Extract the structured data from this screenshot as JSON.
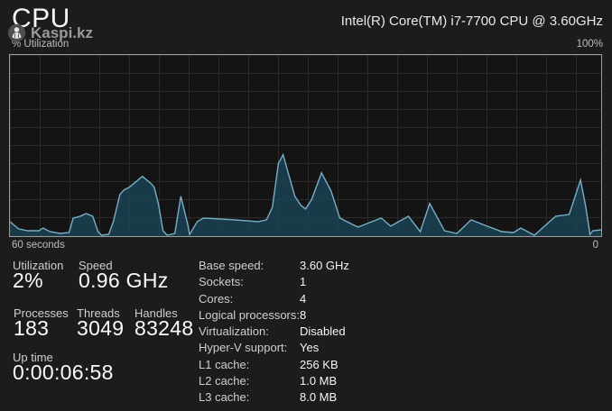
{
  "header": {
    "title": "CPU",
    "cpu_name": "Intel(R) Core(TM) i7-7700 CPU @ 3.60GHz",
    "watermark": {
      "icon": "kaspi-logo-icon",
      "text": "Kaspi.kz"
    }
  },
  "chart": {
    "ylabel": "% Utilization",
    "ymax_label": "100%",
    "xleft_label": "60 seconds",
    "xright_label": "0"
  },
  "stats": {
    "utilization": {
      "label": "Utilization",
      "value": "2%"
    },
    "speed": {
      "label": "Speed",
      "value": "0.96 GHz"
    },
    "processes": {
      "label": "Processes",
      "value": "183"
    },
    "threads": {
      "label": "Threads",
      "value": "3049"
    },
    "handles": {
      "label": "Handles",
      "value": "83248"
    },
    "uptime": {
      "label": "Up time",
      "value": "0:00:06:58"
    }
  },
  "specs": {
    "rows": [
      {
        "label": "Base speed:",
        "value": "3.60 GHz"
      },
      {
        "label": "Sockets:",
        "value": "1"
      },
      {
        "label": "Cores:",
        "value": "4"
      },
      {
        "label": "Logical processors:",
        "value": "8"
      },
      {
        "label": "Virtualization:",
        "value": "Disabled"
      },
      {
        "label": "Hyper-V support:",
        "value": "Yes"
      },
      {
        "label": "L1 cache:",
        "value": "256 KB"
      },
      {
        "label": "L2 cache:",
        "value": "1.0 MB"
      },
      {
        "label": "L3 cache:",
        "value": "8.0 MB"
      }
    ]
  },
  "chart_data": {
    "type": "area",
    "title": "% Utilization",
    "x_axis": {
      "label_left": "60 seconds",
      "label_right": "0",
      "range_seconds": [
        60,
        0
      ]
    },
    "y_axis": {
      "min": 0,
      "max": 100,
      "max_label": "100%"
    },
    "grid": true,
    "line_color": "#79aec6",
    "fill_color": "#1b4456",
    "border_color": "#9a9a9a",
    "background_color": "#141414",
    "points_format": "[position 0-1 left to right, utilization percent]",
    "points": [
      [
        0.0,
        8
      ],
      [
        0.015,
        4
      ],
      [
        0.03,
        3
      ],
      [
        0.049,
        3
      ],
      [
        0.056,
        4.5
      ],
      [
        0.068,
        2.5
      ],
      [
        0.085,
        1.5
      ],
      [
        0.1,
        2
      ],
      [
        0.107,
        10
      ],
      [
        0.119,
        11
      ],
      [
        0.129,
        12.5
      ],
      [
        0.14,
        11
      ],
      [
        0.149,
        2.5
      ],
      [
        0.155,
        0.5
      ],
      [
        0.167,
        1
      ],
      [
        0.175,
        8
      ],
      [
        0.186,
        23
      ],
      [
        0.193,
        25.5
      ],
      [
        0.202,
        27
      ],
      [
        0.213,
        30
      ],
      [
        0.224,
        33
      ],
      [
        0.239,
        29
      ],
      [
        0.244,
        27
      ],
      [
        0.251,
        18
      ],
      [
        0.259,
        3
      ],
      [
        0.266,
        0.5
      ],
      [
        0.279,
        1.5
      ],
      [
        0.289,
        22
      ],
      [
        0.3,
        7.5
      ],
      [
        0.304,
        1
      ],
      [
        0.317,
        8
      ],
      [
        0.327,
        10
      ],
      [
        0.38,
        9
      ],
      [
        0.42,
        8
      ],
      [
        0.434,
        9
      ],
      [
        0.444,
        16
      ],
      [
        0.454,
        40
      ],
      [
        0.462,
        45
      ],
      [
        0.475,
        30
      ],
      [
        0.482,
        22
      ],
      [
        0.492,
        17
      ],
      [
        0.5,
        15
      ],
      [
        0.51,
        20
      ],
      [
        0.527,
        35
      ],
      [
        0.543,
        25
      ],
      [
        0.558,
        10
      ],
      [
        0.582,
        6
      ],
      [
        0.589,
        5
      ],
      [
        0.628,
        10
      ],
      [
        0.644,
        5.5
      ],
      [
        0.674,
        11
      ],
      [
        0.694,
        2.5
      ],
      [
        0.71,
        18
      ],
      [
        0.735,
        3
      ],
      [
        0.756,
        1.5
      ],
      [
        0.78,
        9
      ],
      [
        0.807,
        5.5
      ],
      [
        0.832,
        2.5
      ],
      [
        0.852,
        2
      ],
      [
        0.864,
        4.5
      ],
      [
        0.887,
        0.5
      ],
      [
        0.923,
        11
      ],
      [
        0.946,
        12
      ],
      [
        0.965,
        31
      ],
      [
        0.974,
        16
      ],
      [
        0.981,
        1
      ],
      [
        0.986,
        3
      ],
      [
        1.0,
        3.5
      ]
    ]
  }
}
